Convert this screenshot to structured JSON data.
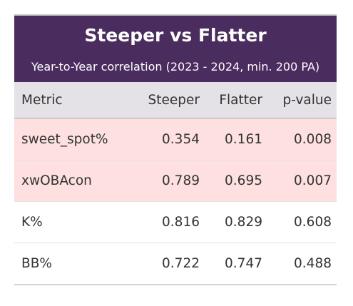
{
  "header": {
    "title": "Steeper vs Flatter",
    "subtitle": "Year-to-Year correlation (2023 - 2024, min. 200 PA)"
  },
  "table": {
    "columns": [
      "Metric",
      "Steeper",
      "Flatter",
      "p-value"
    ],
    "rows": [
      [
        "sweet_spot%",
        "0.354",
        "0.161",
        "0.008"
      ],
      [
        "xwOBAcon",
        "0.789",
        "0.695",
        "0.007"
      ],
      [
        "K%",
        "0.816",
        "0.829",
        "0.608"
      ],
      [
        "BB%",
        "0.722",
        "0.747",
        "0.488"
      ]
    ]
  }
}
